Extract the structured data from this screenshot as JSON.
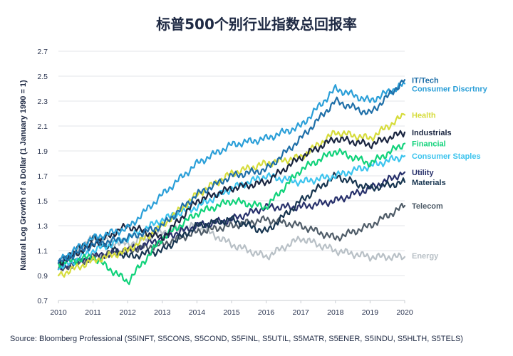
{
  "title": "标普500个别行业指数总回报率",
  "source": "Source: Bloomberg Professional (S5INFT, S5CONS, S5COND, S5FINL, S5UTIL, S5MATR, S5ENER, S5INDU, S5HLTH, S5TELS)",
  "chart_data": {
    "type": "line",
    "title": "标普500个别行业指数总回报率",
    "ylabel": "Natural Log Growth of a Dollar (1 January 1990 = 1)",
    "xlabel": "",
    "xlim": [
      2010,
      2020
    ],
    "ylim": [
      0.7,
      2.7
    ],
    "grid": "horizontal",
    "legend": "right-edge labels",
    "x_ticks": [
      "2010",
      "2011",
      "2012",
      "2013",
      "2014",
      "2015",
      "2016",
      "2017",
      "2018",
      "2019",
      "2020"
    ],
    "y_ticks": [
      "0.7",
      "0.9",
      "1.1",
      "1.3",
      "1.5",
      "1.7",
      "1.9",
      "2.1",
      "2.3",
      "2.5",
      "2.7"
    ],
    "x": [
      2010,
      2011,
      2012,
      2013,
      2014,
      2015,
      2016,
      2017,
      2018,
      2019,
      2020
    ],
    "series": [
      {
        "name": "IT/Tech",
        "color": "#1f6fa8",
        "values": [
          1.0,
          1.15,
          1.2,
          1.3,
          1.55,
          1.7,
          1.75,
          2.0,
          2.3,
          2.2,
          2.47
        ]
      },
      {
        "name": "Consumer Discrtnry",
        "color": "#2b9fd8",
        "values": [
          1.02,
          1.2,
          1.28,
          1.55,
          1.8,
          1.95,
          2.0,
          2.1,
          2.4,
          2.3,
          2.44
        ]
      },
      {
        "name": "Health",
        "color": "#d6dc3c",
        "values": [
          0.9,
          1.02,
          1.1,
          1.3,
          1.55,
          1.72,
          1.8,
          1.85,
          2.05,
          2.0,
          2.19
        ]
      },
      {
        "name": "Industrials",
        "color": "#1a2540",
        "values": [
          1.0,
          1.15,
          1.3,
          1.2,
          1.5,
          1.6,
          1.65,
          1.85,
          2.0,
          1.95,
          2.05
        ]
      },
      {
        "name": "Financial",
        "color": "#10d27a",
        "values": [
          1.0,
          1.05,
          0.85,
          1.2,
          1.4,
          1.5,
          1.45,
          1.75,
          1.9,
          1.8,
          1.96
        ]
      },
      {
        "name": "Consumer Staples",
        "color": "#3cc4ee",
        "values": [
          0.95,
          1.1,
          1.2,
          1.35,
          1.45,
          1.6,
          1.7,
          1.65,
          1.7,
          1.78,
          1.86
        ]
      },
      {
        "name": "Utility",
        "color": "#27306b",
        "values": [
          0.95,
          1.05,
          1.1,
          1.2,
          1.3,
          1.35,
          1.45,
          1.45,
          1.5,
          1.6,
          1.73
        ]
      },
      {
        "name": "Materials",
        "color": "#173550",
        "values": [
          1.0,
          1.2,
          1.05,
          1.1,
          1.3,
          1.35,
          1.25,
          1.5,
          1.7,
          1.6,
          1.65
        ]
      },
      {
        "name": "Telecom",
        "color": "#4f5c68",
        "values": [
          0.95,
          1.05,
          1.1,
          1.15,
          1.25,
          1.3,
          1.35,
          1.3,
          1.2,
          1.3,
          1.46
        ]
      },
      {
        "name": "Energy",
        "color": "#b8c0c6",
        "values": [
          1.0,
          1.2,
          1.15,
          1.25,
          1.3,
          1.15,
          1.05,
          1.2,
          1.1,
          1.05,
          1.05
        ]
      }
    ],
    "series_labels": [
      {
        "name": "IT/Tech",
        "y": 2.47
      },
      {
        "name": "Consumer Discrtnry",
        "y": 2.4
      },
      {
        "name": "Health",
        "y": 2.19
      },
      {
        "name": "Industrials",
        "y": 2.05
      },
      {
        "name": "Financial",
        "y": 1.96
      },
      {
        "name": "Consumer Staples",
        "y": 1.86
      },
      {
        "name": "Utility",
        "y": 1.73
      },
      {
        "name": "Materials",
        "y": 1.65
      },
      {
        "name": "Telecom",
        "y": 1.46
      },
      {
        "name": "Energy",
        "y": 1.06
      }
    ]
  }
}
